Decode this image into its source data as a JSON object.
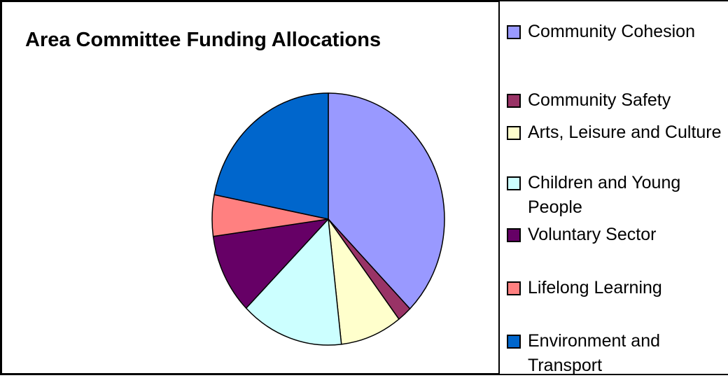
{
  "chart_data": {
    "type": "pie",
    "title": "Area Committee Funding Allocations",
    "categories": [
      "Community Cohesion",
      "Community Safety",
      "Arts, Leisure and Culture",
      "Children and Young People",
      "Voluntary Sector",
      "Lifelong Learning",
      "Environment and Transport"
    ],
    "values": [
      37.6,
      2,
      8.6,
      14.3,
      10.3,
      5.3,
      21.9
    ],
    "colors": [
      "#9999ff",
      "#993366",
      "#ffffcc",
      "#ccffff",
      "#660066",
      "#ff8080",
      "#0066cc"
    ],
    "legend": "right"
  }
}
